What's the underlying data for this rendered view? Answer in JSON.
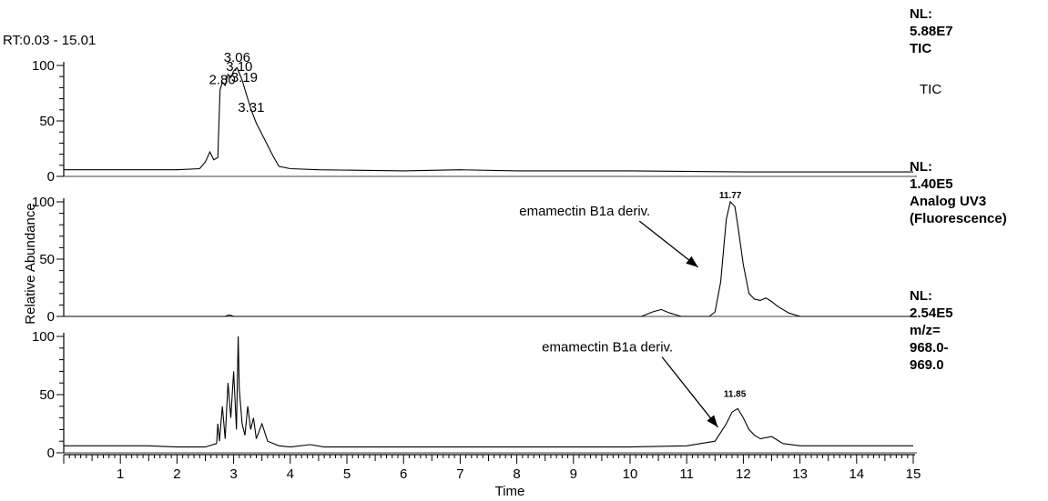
{
  "chart_data": {
    "type": "line",
    "header": "RT:0.03 - 15.01",
    "xlabel": "Time",
    "ylabel": "Relative Abundance",
    "xlim": [
      0,
      15
    ],
    "x_ticks": [
      "1",
      "2",
      "3",
      "4",
      "5",
      "6",
      "7",
      "8",
      "9",
      "10",
      "11",
      "12",
      "13",
      "14",
      "15"
    ],
    "panels": [
      {
        "id": "tic",
        "ylim": [
          0,
          100
        ],
        "y_ticks": [
          "0",
          "50",
          "100"
        ],
        "side_labels": [
          "NL:",
          "5.88E7",
          "TIC"
        ],
        "trace_label": "TIC",
        "peak_labels": [
          {
            "x": 2.8,
            "y": 80,
            "text": "2.80"
          },
          {
            "x": 3.06,
            "y": 100,
            "text": "3.06"
          },
          {
            "x": 3.1,
            "y": 92,
            "text": "3.10"
          },
          {
            "x": 3.19,
            "y": 82,
            "text": "3.19"
          },
          {
            "x": 3.31,
            "y": 55,
            "text": "3.31"
          }
        ],
        "x": [
          0.0,
          0.3,
          1.0,
          2.0,
          2.4,
          2.5,
          2.58,
          2.65,
          2.72,
          2.76,
          2.8,
          2.85,
          2.9,
          2.95,
          3.0,
          3.06,
          3.1,
          3.15,
          3.19,
          3.25,
          3.31,
          3.4,
          3.5,
          3.6,
          3.7,
          3.8,
          4.0,
          4.5,
          6.0,
          7.0,
          8.0,
          9.0,
          10.0,
          12.0,
          15.0
        ],
        "y": [
          6,
          6,
          6,
          6,
          7,
          13,
          22,
          15,
          17,
          78,
          85,
          82,
          92,
          89,
          95,
          98,
          93,
          87,
          80,
          70,
          60,
          48,
          38,
          28,
          18,
          9,
          7,
          6,
          5,
          6,
          5,
          5,
          5,
          4,
          4
        ]
      },
      {
        "id": "uv",
        "ylim": [
          0,
          100
        ],
        "y_ticks": [
          "0",
          "50",
          "100"
        ],
        "side_labels": [
          "NL:",
          "1.40E5",
          "Analog UV3",
          "(Fluorescence)"
        ],
        "peak_labels": [
          {
            "x": 11.77,
            "y": 100,
            "text": "11.77"
          }
        ],
        "annotation": {
          "text": "emamectin B1a deriv.",
          "x": 9.2,
          "y": 88,
          "arrow_to": [
            11.2,
            43
          ]
        },
        "x": [
          0.0,
          2.85,
          2.9,
          2.95,
          3.0,
          10.2,
          10.4,
          10.55,
          10.7,
          10.9,
          11.0,
          11.4,
          11.5,
          11.6,
          11.7,
          11.77,
          11.85,
          11.9,
          12.0,
          12.1,
          12.2,
          12.3,
          12.4,
          12.5,
          12.6,
          12.8,
          13.0,
          15.0
        ],
        "y": [
          0,
          0,
          1,
          1,
          0,
          0,
          4,
          6,
          3,
          0,
          0,
          0,
          4,
          30,
          85,
          100,
          96,
          80,
          45,
          20,
          15,
          14,
          16,
          13,
          9,
          3,
          0,
          0
        ]
      },
      {
        "id": "mz",
        "ylim": [
          0,
          100
        ],
        "y_ticks": [
          "0",
          "50",
          "100"
        ],
        "side_labels": [
          "NL:",
          "2.54E5",
          "m/z=",
          "968.0-",
          "969.0"
        ],
        "peak_labels": [
          {
            "x": 11.85,
            "y": 45,
            "text": "11.85"
          }
        ],
        "annotation": {
          "text": "emamectin B1a deriv.",
          "x": 9.6,
          "y": 87,
          "arrow_to": [
            11.55,
            22
          ]
        },
        "x": [
          0.0,
          0.5,
          1.0,
          1.5,
          2.0,
          2.5,
          2.7,
          2.72,
          2.75,
          2.8,
          2.85,
          2.9,
          2.95,
          3.0,
          3.05,
          3.08,
          3.1,
          3.15,
          3.2,
          3.25,
          3.3,
          3.35,
          3.4,
          3.5,
          3.6,
          3.7,
          3.8,
          4.0,
          4.35,
          4.6,
          5.0,
          7.0,
          9.0,
          10.0,
          11.0,
          11.5,
          11.7,
          11.8,
          11.9,
          12.0,
          12.1,
          12.2,
          12.3,
          12.5,
          12.7,
          13.0,
          14.0,
          15.0
        ],
        "y": [
          6,
          6,
          6,
          6,
          5,
          5,
          8,
          25,
          10,
          40,
          12,
          60,
          30,
          70,
          20,
          100,
          55,
          25,
          15,
          40,
          20,
          30,
          12,
          25,
          10,
          8,
          6,
          5,
          7,
          5,
          5,
          5,
          5,
          5,
          6,
          10,
          25,
          35,
          38,
          30,
          20,
          15,
          12,
          14,
          8,
          6,
          6,
          6
        ]
      }
    ]
  }
}
